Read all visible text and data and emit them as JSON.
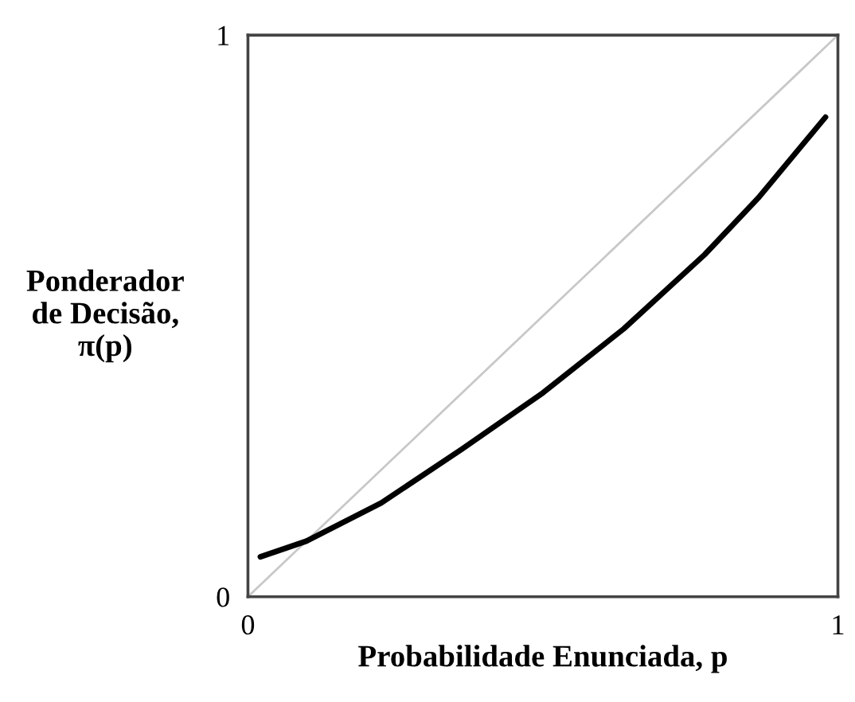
{
  "chart_data": {
    "type": "line",
    "xlabel": "Probabilidade Enunciada, p",
    "ylabel": "Ponderador\nde Decisão,\nπ(p)",
    "xlim": [
      0,
      1
    ],
    "ylim": [
      0,
      1
    ],
    "xticks": [
      0,
      1
    ],
    "yticks": [
      0,
      1
    ],
    "marker": "none",
    "series": [
      {
        "color": "#c8c8c8",
        "x": [
          0,
          1
        ],
        "values": [
          0,
          1
        ]
      },
      {
        "color": "#000000",
        "x": [
          0.021,
          0.099,
          0.226,
          0.363,
          0.5,
          0.637,
          0.774,
          0.865,
          0.979
        ],
        "values": [
          0.071,
          0.099,
          0.167,
          0.263,
          0.363,
          0.477,
          0.609,
          0.71,
          0.854
        ]
      }
    ]
  }
}
